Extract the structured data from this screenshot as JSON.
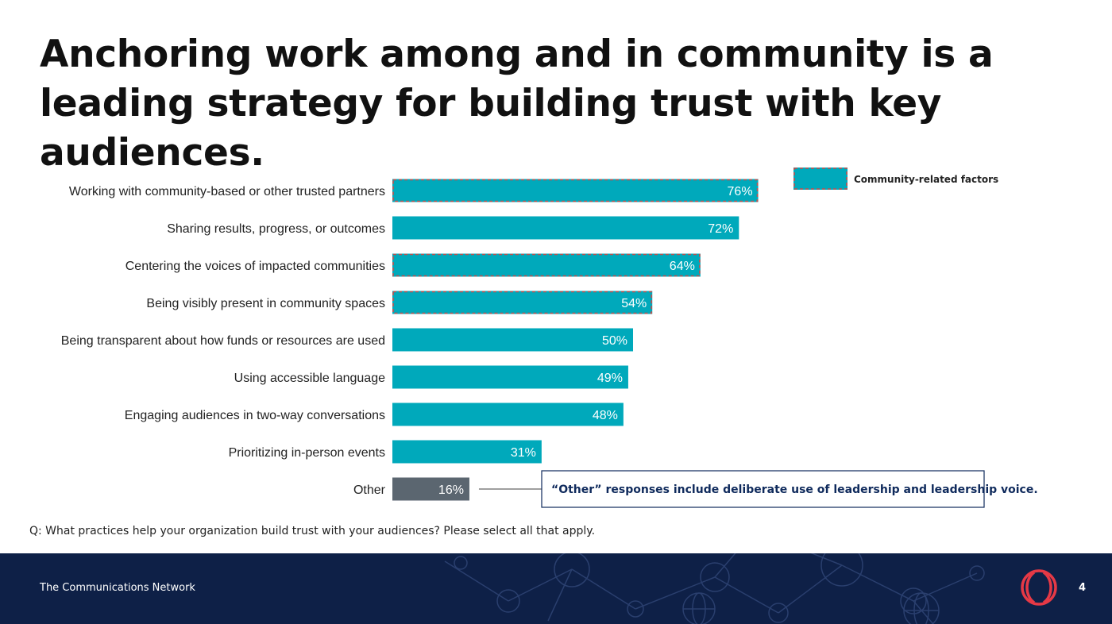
{
  "slide": {
    "title": "Anchoring work among and in community is a leading strategy for building trust with key audiences.",
    "question": "Q: What practices help your organization build trust with your audiences? Please select all that apply.",
    "organization": "The Communications Network",
    "page_number": "4",
    "logo_icon": "organization-logo-icon"
  },
  "chart_data": {
    "type": "bar",
    "orientation": "horizontal",
    "title": "",
    "xlabel": "",
    "ylabel": "",
    "xlim": [
      0,
      100
    ],
    "grid": false,
    "legend": {
      "position": "top-right",
      "entries": [
        {
          "label": "Community-related factors",
          "style": "dashed-outline"
        }
      ]
    },
    "categories": [
      "Working with community-based or other trusted partners",
      "Sharing results, progress, or outcomes",
      "Centering the voices of impacted communities",
      "Being visibly present in community spaces",
      "Being transparent about how funds or resources are used",
      "Using accessible language",
      "Engaging audiences in two-way conversations",
      "Prioritizing in-person events",
      "Other"
    ],
    "values": [
      76,
      72,
      64,
      54,
      50,
      49,
      48,
      31,
      16
    ],
    "value_labels": [
      "76%",
      "72%",
      "64%",
      "54%",
      "50%",
      "49%",
      "48%",
      "31%",
      "16%"
    ],
    "community_related": [
      true,
      false,
      true,
      true,
      false,
      false,
      false,
      false,
      false
    ],
    "annotation": {
      "target": "Other",
      "text": "“Other” responses include deliberate use of leadership and leadership voice."
    },
    "colors": {
      "bar": "#00a9bb",
      "other_bar": "#5b6670",
      "highlight_outline": "#c0504d",
      "annotation_text": "#0f2a5c",
      "annotation_border": "#0f2a5c"
    }
  }
}
